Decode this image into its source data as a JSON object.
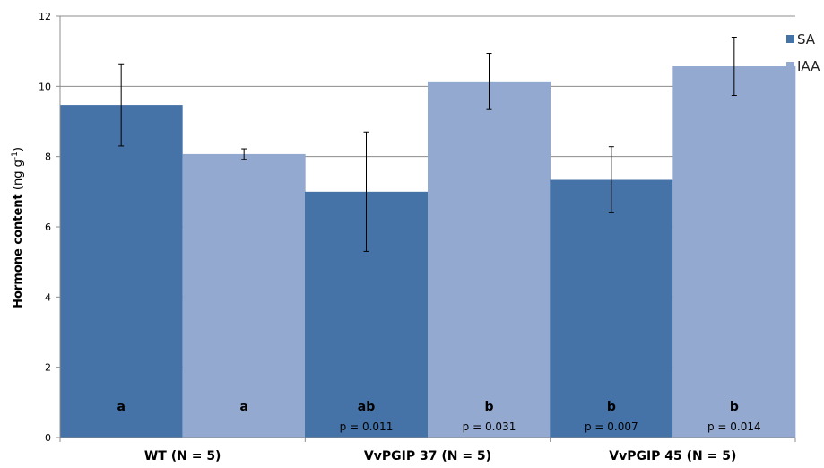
{
  "chart_data": {
    "type": "bar",
    "title": "",
    "xlabel": "",
    "ylabel": {
      "main": "Hormone content",
      "unit_open": " (ng g",
      "unit_sup": "-1",
      "unit_close": ")"
    },
    "ylim": [
      0,
      12
    ],
    "yticks": [
      "0",
      "2",
      "4",
      "6",
      "8",
      "10",
      "12"
    ],
    "grid": true,
    "legend_position": "top-right",
    "categories": [
      "WT (N = 5)",
      "VvPGIP 37 (N = 5)",
      "VvPGIP 45 (N = 5)"
    ],
    "series": [
      {
        "name": "SA",
        "color": "#4572a7",
        "values": [
          9.47,
          7.0,
          7.34
        ],
        "errors": [
          1.17,
          1.7,
          0.94
        ],
        "sig_letters": [
          "a",
          "ab",
          "b"
        ],
        "p_values": [
          "",
          "p = 0.011",
          "p = 0.007"
        ]
      },
      {
        "name": "IAA",
        "color": "#93a9d0",
        "values": [
          8.07,
          10.14,
          10.57
        ],
        "errors": [
          0.15,
          0.8,
          0.83
        ],
        "sig_letters": [
          "a",
          "b",
          "b"
        ],
        "p_values": [
          "",
          "p = 0.031",
          "p = 0.014"
        ]
      }
    ]
  }
}
